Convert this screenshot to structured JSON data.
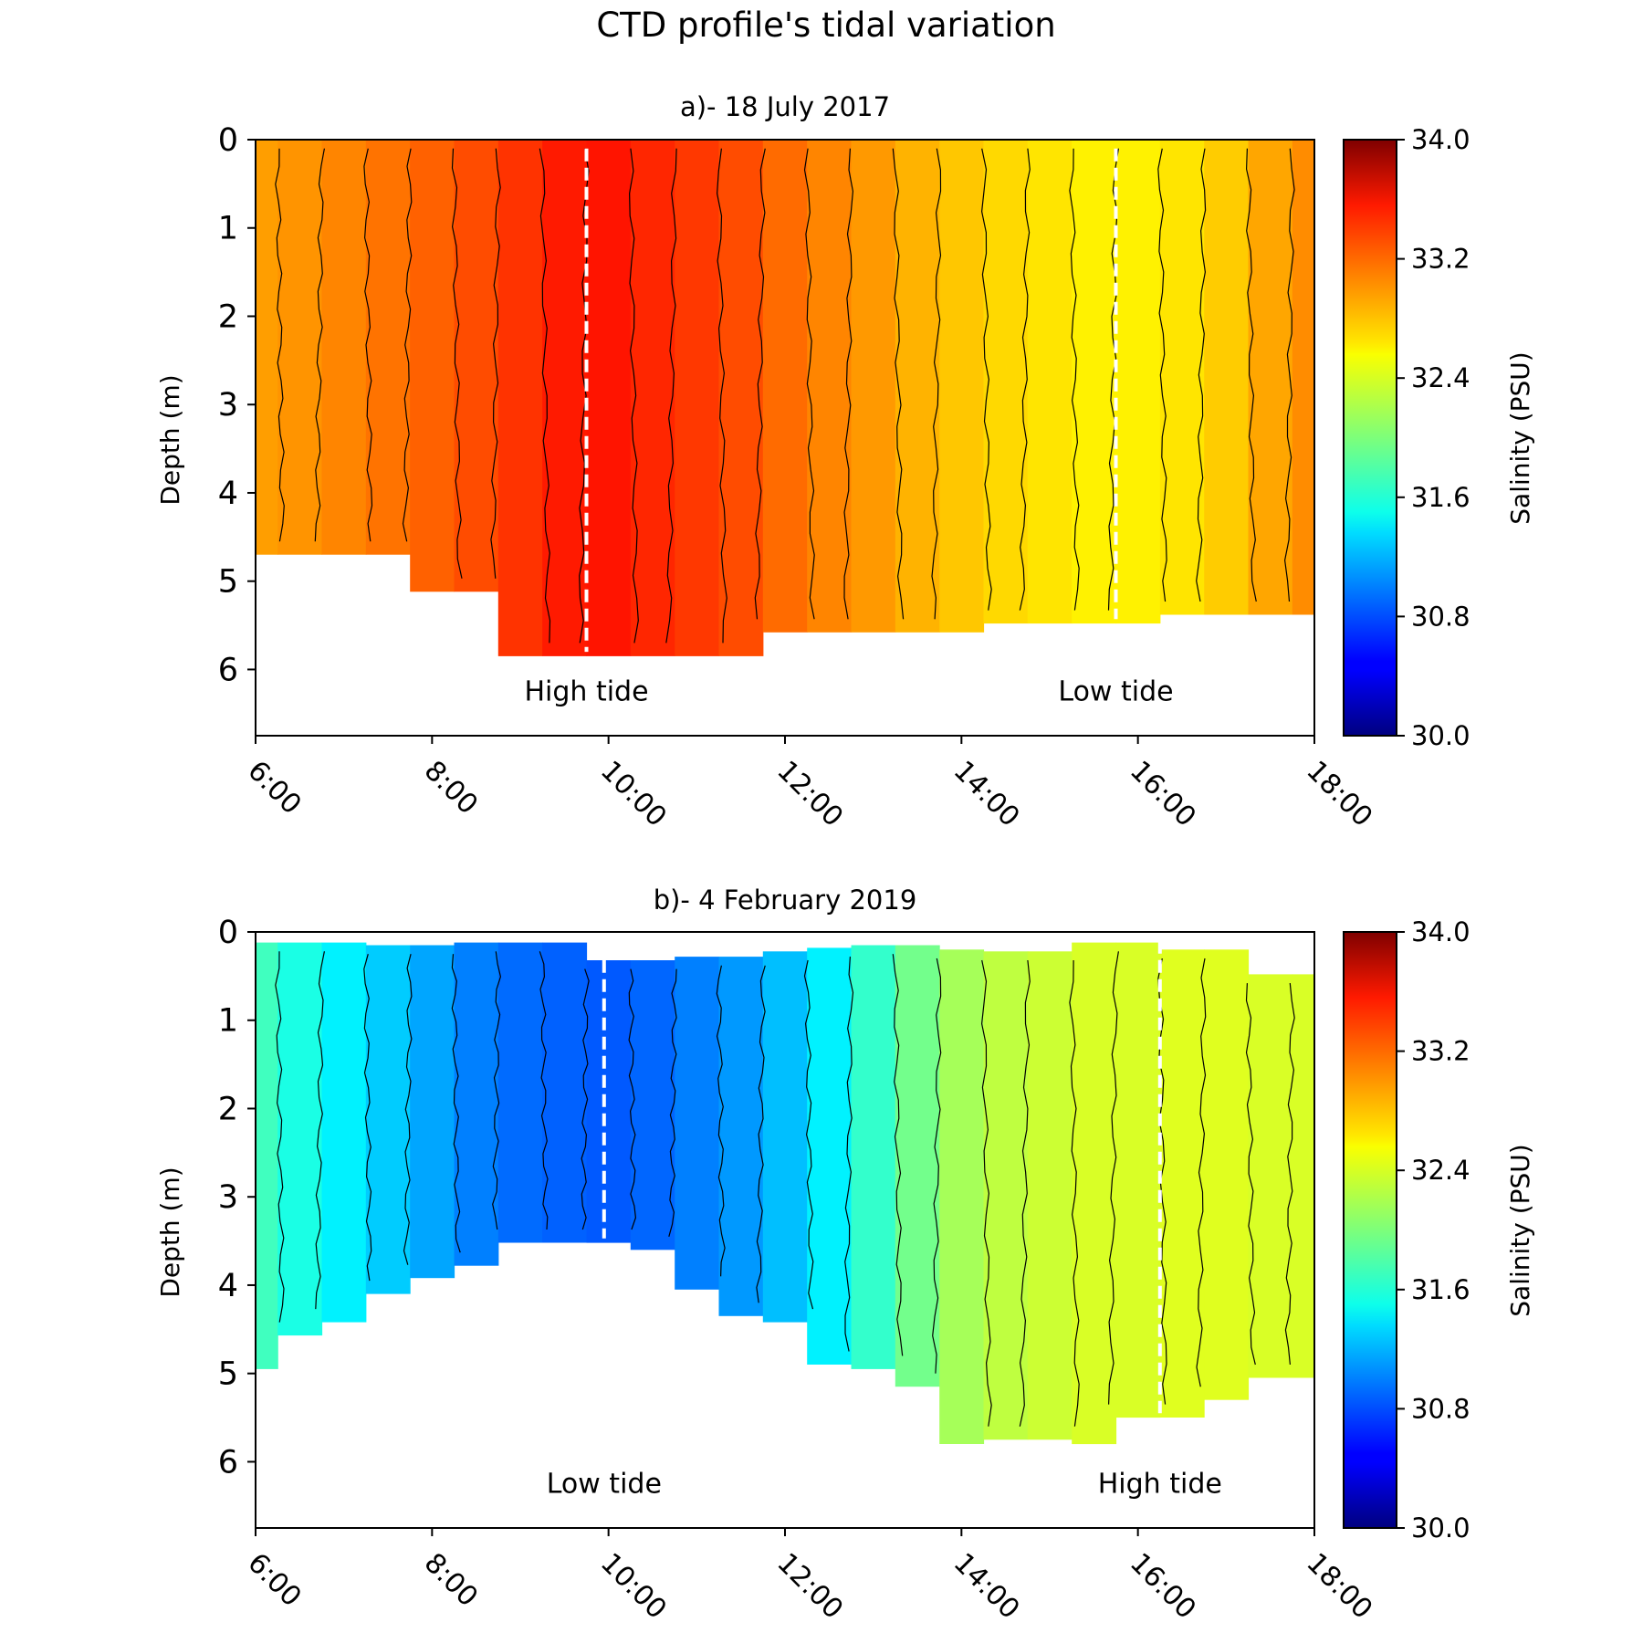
{
  "title": "CTD profile's tidal variation",
  "chart_data": [
    {
      "type": "heatmap",
      "title": "a)- 18 July 2017",
      "xlabel": "",
      "ylabel": "Depth (m)",
      "xlim": [
        6,
        18
      ],
      "ylim": [
        6.75,
        0
      ],
      "xticks": [
        "6:00",
        "8:00",
        "10:00",
        "12:00",
        "14:00",
        "16:00",
        "18:00"
      ],
      "yticks": [
        "0",
        "1",
        "2",
        "3",
        "4",
        "5",
        "6"
      ],
      "colorbar": {
        "label": "Salinity (PSU)",
        "range": [
          30.0,
          34.0
        ],
        "ticks": [
          "34.0",
          "33.2",
          "32.4",
          "31.6",
          "30.8",
          "30.0"
        ],
        "colormap": "jet"
      },
      "casts": [
        {
          "x": 6.0,
          "salinity": 32.88,
          "top": 0.0,
          "bottom": 4.7
        },
        {
          "x": 6.5,
          "salinity": 32.92,
          "top": 0.0,
          "bottom": 4.7
        },
        {
          "x": 7.0,
          "salinity": 32.98,
          "top": 0.0,
          "bottom": 4.7
        },
        {
          "x": 7.5,
          "salinity": 33.05,
          "top": 0.0,
          "bottom": 4.7
        },
        {
          "x": 8.0,
          "salinity": 33.12,
          "top": 0.0,
          "bottom": 5.12
        },
        {
          "x": 8.5,
          "salinity": 33.2,
          "top": 0.0,
          "bottom": 5.12
        },
        {
          "x": 9.0,
          "salinity": 33.3,
          "top": 0.0,
          "bottom": 5.85
        },
        {
          "x": 9.5,
          "salinity": 33.4,
          "top": 0.0,
          "bottom": 5.85
        },
        {
          "x": 10.0,
          "salinity": 33.42,
          "top": 0.0,
          "bottom": 5.85
        },
        {
          "x": 10.5,
          "salinity": 33.35,
          "top": 0.0,
          "bottom": 5.85
        },
        {
          "x": 11.0,
          "salinity": 33.28,
          "top": 0.0,
          "bottom": 5.85
        },
        {
          "x": 11.5,
          "salinity": 33.2,
          "top": 0.0,
          "bottom": 5.85
        },
        {
          "x": 12.0,
          "salinity": 33.08,
          "top": 0.0,
          "bottom": 5.58
        },
        {
          "x": 12.5,
          "salinity": 32.98,
          "top": 0.0,
          "bottom": 5.58
        },
        {
          "x": 13.0,
          "salinity": 32.9,
          "top": 0.0,
          "bottom": 5.58
        },
        {
          "x": 13.5,
          "salinity": 32.8,
          "top": 0.0,
          "bottom": 5.58
        },
        {
          "x": 14.0,
          "salinity": 32.72,
          "top": 0.0,
          "bottom": 5.58
        },
        {
          "x": 14.5,
          "salinity": 32.65,
          "top": 0.0,
          "bottom": 5.48
        },
        {
          "x": 15.0,
          "salinity": 32.6,
          "top": 0.0,
          "bottom": 5.48
        },
        {
          "x": 15.5,
          "salinity": 32.55,
          "top": 0.0,
          "bottom": 5.48
        },
        {
          "x": 16.0,
          "salinity": 32.55,
          "top": 0.0,
          "bottom": 5.48
        },
        {
          "x": 16.5,
          "salinity": 32.6,
          "top": 0.0,
          "bottom": 5.38
        },
        {
          "x": 17.0,
          "salinity": 32.7,
          "top": 0.0,
          "bottom": 5.38
        },
        {
          "x": 17.5,
          "salinity": 32.85,
          "top": 0.0,
          "bottom": 5.38
        },
        {
          "x": 18.0,
          "salinity": 32.95,
          "top": 0.0,
          "bottom": 5.38
        }
      ],
      "tide_markers": [
        {
          "time": 9.75,
          "label": "High tide"
        },
        {
          "time": 15.75,
          "label": "Low tide"
        }
      ]
    },
    {
      "type": "heatmap",
      "title": "b)- 4 February 2019",
      "xlabel": "",
      "ylabel": "Depth (m)",
      "xlim": [
        6,
        18
      ],
      "ylim": [
        6.75,
        0
      ],
      "xticks": [
        "6:00",
        "8:00",
        "10:00",
        "12:00",
        "14:00",
        "16:00",
        "18:00"
      ],
      "yticks": [
        "0",
        "1",
        "2",
        "3",
        "4",
        "5",
        "6"
      ],
      "colorbar": {
        "label": "Salinity (PSU)",
        "range": [
          30.0,
          34.0
        ],
        "ticks": [
          "34.0",
          "33.2",
          "32.4",
          "31.6",
          "30.8",
          "30.0"
        ],
        "colormap": "jet"
      },
      "casts": [
        {
          "x": 6.0,
          "salinity": 31.75,
          "top": 0.12,
          "bottom": 4.95
        },
        {
          "x": 6.5,
          "salinity": 31.6,
          "top": 0.12,
          "bottom": 4.57
        },
        {
          "x": 7.0,
          "salinity": 31.45,
          "top": 0.12,
          "bottom": 4.42
        },
        {
          "x": 7.5,
          "salinity": 31.3,
          "top": 0.15,
          "bottom": 4.1
        },
        {
          "x": 8.0,
          "salinity": 31.15,
          "top": 0.15,
          "bottom": 3.92
        },
        {
          "x": 8.5,
          "salinity": 31.0,
          "top": 0.12,
          "bottom": 3.78
        },
        {
          "x": 9.0,
          "salinity": 30.92,
          "top": 0.12,
          "bottom": 3.52
        },
        {
          "x": 9.5,
          "salinity": 30.88,
          "top": 0.12,
          "bottom": 3.52
        },
        {
          "x": 10.0,
          "salinity": 30.85,
          "top": 0.32,
          "bottom": 3.52
        },
        {
          "x": 10.5,
          "salinity": 30.9,
          "top": 0.32,
          "bottom": 3.6
        },
        {
          "x": 11.0,
          "salinity": 31.0,
          "top": 0.28,
          "bottom": 4.05
        },
        {
          "x": 11.5,
          "salinity": 31.1,
          "top": 0.28,
          "bottom": 4.35
        },
        {
          "x": 12.0,
          "salinity": 31.25,
          "top": 0.22,
          "bottom": 4.42
        },
        {
          "x": 12.5,
          "salinity": 31.45,
          "top": 0.18,
          "bottom": 4.9
        },
        {
          "x": 13.0,
          "salinity": 31.7,
          "top": 0.15,
          "bottom": 4.95
        },
        {
          "x": 13.5,
          "salinity": 31.95,
          "top": 0.15,
          "bottom": 5.15
        },
        {
          "x": 14.0,
          "salinity": 32.15,
          "top": 0.2,
          "bottom": 5.8
        },
        {
          "x": 14.5,
          "salinity": 32.25,
          "top": 0.22,
          "bottom": 5.75
        },
        {
          "x": 15.0,
          "salinity": 32.3,
          "top": 0.22,
          "bottom": 5.75
        },
        {
          "x": 15.5,
          "salinity": 32.35,
          "top": 0.12,
          "bottom": 5.8
        },
        {
          "x": 16.0,
          "salinity": 32.35,
          "top": 0.12,
          "bottom": 5.5
        },
        {
          "x": 16.5,
          "salinity": 32.38,
          "top": 0.2,
          "bottom": 5.5
        },
        {
          "x": 17.0,
          "salinity": 32.38,
          "top": 0.2,
          "bottom": 5.3
        },
        {
          "x": 17.5,
          "salinity": 32.35,
          "top": 0.48,
          "bottom": 5.05
        },
        {
          "x": 18.0,
          "salinity": 32.35,
          "top": 0.48,
          "bottom": 5.05
        }
      ],
      "tide_markers": [
        {
          "time": 9.95,
          "label": "Low tide"
        },
        {
          "time": 16.25,
          "label": "High tide"
        }
      ]
    }
  ]
}
